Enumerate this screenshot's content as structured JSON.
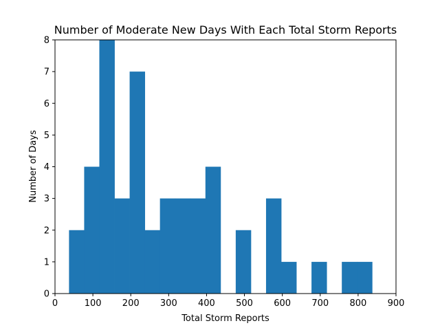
{
  "chart_data": {
    "type": "bar",
    "title": "Number of Moderate New Days With Each Total Storm Reports",
    "xlabel": "Total Storm Reports",
    "ylabel": "Number of Days",
    "xlim": [
      0,
      900
    ],
    "ylim": [
      0,
      8
    ],
    "xticks": [
      0,
      100,
      200,
      300,
      400,
      500,
      600,
      700,
      800,
      900
    ],
    "yticks": [
      0,
      1,
      2,
      3,
      4,
      5,
      6,
      7,
      8
    ],
    "grid": false,
    "bar_color": "#1f77b4",
    "bins": [
      {
        "x0": 37,
        "x1": 77,
        "count": 2
      },
      {
        "x0": 77,
        "x1": 117,
        "count": 4
      },
      {
        "x0": 117,
        "x1": 157,
        "count": 8
      },
      {
        "x0": 157,
        "x1": 197,
        "count": 3
      },
      {
        "x0": 197,
        "x1": 237,
        "count": 7
      },
      {
        "x0": 237,
        "x1": 277,
        "count": 2
      },
      {
        "x0": 277,
        "x1": 317,
        "count": 3
      },
      {
        "x0": 317,
        "x1": 357,
        "count": 3
      },
      {
        "x0": 357,
        "x1": 397,
        "count": 3
      },
      {
        "x0": 397,
        "x1": 437,
        "count": 4
      },
      {
        "x0": 437,
        "x1": 477,
        "count": 0
      },
      {
        "x0": 477,
        "x1": 517,
        "count": 2
      },
      {
        "x0": 517,
        "x1": 557,
        "count": 0
      },
      {
        "x0": 557,
        "x1": 597,
        "count": 3
      },
      {
        "x0": 597,
        "x1": 637,
        "count": 1
      },
      {
        "x0": 637,
        "x1": 677,
        "count": 0
      },
      {
        "x0": 677,
        "x1": 717,
        "count": 1
      },
      {
        "x0": 717,
        "x1": 757,
        "count": 0
      },
      {
        "x0": 757,
        "x1": 797,
        "count": 1
      },
      {
        "x0": 797,
        "x1": 837,
        "count": 1
      }
    ]
  }
}
